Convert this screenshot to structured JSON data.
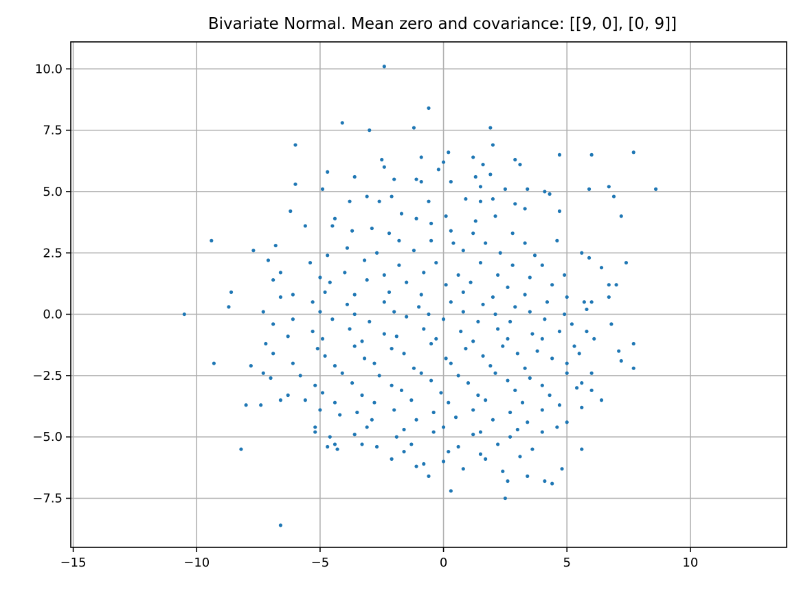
{
  "chart_data": {
    "type": "scatter",
    "title": "Bivariate Normal. Mean zero and covariance: [[9, 0], [0, 9]]",
    "xlabel": "",
    "ylabel": "",
    "xlim": [
      -15.1,
      13.9
    ],
    "ylim": [
      -9.5,
      11.1
    ],
    "xticks": [
      -15,
      -10,
      -5,
      0,
      5,
      10
    ],
    "xtick_labels": [
      "−15",
      "−10",
      "−5",
      "0",
      "5",
      "10"
    ],
    "yticks": [
      -7.5,
      -5.0,
      -2.5,
      0.0,
      2.5,
      5.0,
      7.5,
      10.0
    ],
    "ytick_labels": [
      "−7.5",
      "−5.0",
      "−2.5",
      "0.0",
      "2.5",
      "5.0",
      "7.5",
      "10.0"
    ],
    "grid": true,
    "marker_color": "#1f77b4",
    "points": [
      [
        -2.4,
        10.1
      ],
      [
        -0.6,
        8.4
      ],
      [
        -4.1,
        7.8
      ],
      [
        1.9,
        7.6
      ],
      [
        -1.2,
        7.6
      ],
      [
        -3.0,
        7.5
      ],
      [
        -6.0,
        6.9
      ],
      [
        2.0,
        6.9
      ],
      [
        7.7,
        6.6
      ],
      [
        4.7,
        6.5
      ],
      [
        6.0,
        6.5
      ],
      [
        0.2,
        6.6
      ],
      [
        1.2,
        6.4
      ],
      [
        -0.9,
        6.4
      ],
      [
        2.9,
        6.3
      ],
      [
        -2.5,
        6.3
      ],
      [
        0.0,
        6.2
      ],
      [
        1.6,
        6.1
      ],
      [
        -2.4,
        6.0
      ],
      [
        3.1,
        6.1
      ],
      [
        -0.2,
        5.9
      ],
      [
        -4.7,
        5.8
      ],
      [
        1.9,
        5.7
      ],
      [
        -3.6,
        5.6
      ],
      [
        1.3,
        5.6
      ],
      [
        -1.1,
        5.5
      ],
      [
        0.3,
        5.4
      ],
      [
        -0.9,
        5.4
      ],
      [
        -2.0,
        5.5
      ],
      [
        -6.0,
        5.3
      ],
      [
        6.7,
        5.2
      ],
      [
        8.6,
        5.1
      ],
      [
        -4.9,
        5.1
      ],
      [
        1.5,
        5.2
      ],
      [
        2.5,
        5.1
      ],
      [
        5.9,
        5.1
      ],
      [
        3.4,
        5.1
      ],
      [
        4.1,
        5.0
      ],
      [
        4.3,
        4.9
      ],
      [
        6.9,
        4.8
      ],
      [
        -3.1,
        4.8
      ],
      [
        0.9,
        4.7
      ],
      [
        -2.1,
        4.8
      ],
      [
        2.0,
        4.7
      ],
      [
        -0.6,
        4.6
      ],
      [
        -3.8,
        4.6
      ],
      [
        -2.6,
        4.6
      ],
      [
        1.5,
        4.6
      ],
      [
        2.9,
        4.5
      ],
      [
        3.3,
        4.3
      ],
      [
        -6.2,
        4.2
      ],
      [
        4.7,
        4.2
      ],
      [
        7.2,
        4.0
      ],
      [
        -1.7,
        4.1
      ],
      [
        0.1,
        4.0
      ],
      [
        2.1,
        4.0
      ],
      [
        -4.4,
        3.9
      ],
      [
        -1.1,
        3.9
      ],
      [
        1.3,
        3.8
      ],
      [
        -0.5,
        3.7
      ],
      [
        -5.6,
        3.6
      ],
      [
        -4.5,
        3.6
      ],
      [
        -3.7,
        3.4
      ],
      [
        -2.9,
        3.5
      ],
      [
        -2.2,
        3.3
      ],
      [
        0.3,
        3.4
      ],
      [
        1.2,
        3.3
      ],
      [
        2.8,
        3.3
      ],
      [
        -9.4,
        3.0
      ],
      [
        -6.8,
        2.8
      ],
      [
        -1.8,
        3.0
      ],
      [
        -0.5,
        3.0
      ],
      [
        0.4,
        2.9
      ],
      [
        1.7,
        2.9
      ],
      [
        3.3,
        2.9
      ],
      [
        4.6,
        3.0
      ],
      [
        -7.7,
        2.6
      ],
      [
        -4.7,
        2.4
      ],
      [
        -3.9,
        2.7
      ],
      [
        -2.7,
        2.5
      ],
      [
        -1.2,
        2.6
      ],
      [
        0.8,
        2.6
      ],
      [
        2.3,
        2.5
      ],
      [
        3.7,
        2.4
      ],
      [
        5.6,
        2.5
      ],
      [
        5.9,
        2.3
      ],
      [
        -7.1,
        2.2
      ],
      [
        -5.4,
        2.1
      ],
      [
        -3.2,
        2.2
      ],
      [
        -1.8,
        2.0
      ],
      [
        -0.3,
        2.1
      ],
      [
        1.5,
        2.1
      ],
      [
        2.8,
        2.0
      ],
      [
        4.0,
        2.0
      ],
      [
        7.4,
        2.1
      ],
      [
        6.4,
        1.9
      ],
      [
        -6.6,
        1.7
      ],
      [
        -5.0,
        1.5
      ],
      [
        -4.0,
        1.7
      ],
      [
        -2.4,
        1.6
      ],
      [
        -0.8,
        1.7
      ],
      [
        0.6,
        1.6
      ],
      [
        2.2,
        1.6
      ],
      [
        3.5,
        1.5
      ],
      [
        4.9,
        1.6
      ],
      [
        -6.9,
        1.4
      ],
      [
        -4.6,
        1.3
      ],
      [
        -3.1,
        1.4
      ],
      [
        -1.5,
        1.3
      ],
      [
        0.1,
        1.2
      ],
      [
        1.1,
        1.3
      ],
      [
        2.6,
        1.1
      ],
      [
        4.4,
        1.2
      ],
      [
        6.7,
        1.2
      ],
      [
        7.0,
        1.2
      ],
      [
        -8.6,
        0.9
      ],
      [
        -6.1,
        0.8
      ],
      [
        -4.8,
        0.9
      ],
      [
        -3.6,
        0.8
      ],
      [
        -2.2,
        0.9
      ],
      [
        -0.9,
        0.8
      ],
      [
        0.8,
        0.9
      ],
      [
        2.0,
        0.7
      ],
      [
        3.3,
        0.8
      ],
      [
        5.0,
        0.7
      ],
      [
        6.7,
        0.7
      ],
      [
        -6.6,
        0.7
      ],
      [
        -5.3,
        0.5
      ],
      [
        -3.9,
        0.4
      ],
      [
        -2.4,
        0.5
      ],
      [
        -1.0,
        0.3
      ],
      [
        0.3,
        0.5
      ],
      [
        1.6,
        0.4
      ],
      [
        2.9,
        0.3
      ],
      [
        4.2,
        0.5
      ],
      [
        5.7,
        0.5
      ],
      [
        6.0,
        0.5
      ],
      [
        -8.7,
        0.3
      ],
      [
        -10.5,
        0.0
      ],
      [
        -7.3,
        0.1
      ],
      [
        -5.0,
        0.1
      ],
      [
        -3.6,
        0.0
      ],
      [
        -2.0,
        0.1
      ],
      [
        -0.6,
        0.0
      ],
      [
        0.8,
        0.1
      ],
      [
        2.1,
        0.0
      ],
      [
        3.5,
        0.1
      ],
      [
        4.9,
        0.0
      ],
      [
        5.8,
        0.2
      ],
      [
        -6.1,
        -0.2
      ],
      [
        -4.5,
        -0.2
      ],
      [
        -3.0,
        -0.3
      ],
      [
        -1.5,
        -0.1
      ],
      [
        0.0,
        -0.2
      ],
      [
        1.4,
        -0.3
      ],
      [
        2.7,
        -0.3
      ],
      [
        4.1,
        -0.2
      ],
      [
        5.2,
        -0.4
      ],
      [
        6.8,
        -0.4
      ],
      [
        -6.9,
        -0.4
      ],
      [
        -5.3,
        -0.7
      ],
      [
        -3.8,
        -0.6
      ],
      [
        -2.4,
        -0.8
      ],
      [
        -0.8,
        -0.6
      ],
      [
        0.7,
        -0.7
      ],
      [
        2.2,
        -0.6
      ],
      [
        3.6,
        -0.8
      ],
      [
        4.7,
        -0.7
      ],
      [
        5.8,
        -0.7
      ],
      [
        -6.3,
        -0.9
      ],
      [
        -4.9,
        -1.0
      ],
      [
        -3.3,
        -1.1
      ],
      [
        -1.9,
        -0.9
      ],
      [
        -0.3,
        -1.0
      ],
      [
        1.2,
        -1.1
      ],
      [
        2.6,
        -1.0
      ],
      [
        4.0,
        -1.0
      ],
      [
        6.1,
        -1.0
      ],
      [
        7.7,
        -1.2
      ],
      [
        -7.2,
        -1.2
      ],
      [
        -5.1,
        -1.4
      ],
      [
        -3.6,
        -1.3
      ],
      [
        -2.1,
        -1.4
      ],
      [
        -0.5,
        -1.2
      ],
      [
        0.9,
        -1.4
      ],
      [
        2.4,
        -1.3
      ],
      [
        3.8,
        -1.5
      ],
      [
        5.3,
        -1.3
      ],
      [
        -6.9,
        -1.6
      ],
      [
        -4.8,
        -1.7
      ],
      [
        -3.2,
        -1.8
      ],
      [
        -1.6,
        -1.6
      ],
      [
        0.1,
        -1.8
      ],
      [
        1.6,
        -1.7
      ],
      [
        3.0,
        -1.6
      ],
      [
        4.4,
        -1.8
      ],
      [
        5.5,
        -1.6
      ],
      [
        7.1,
        -1.5
      ],
      [
        -9.3,
        -2.0
      ],
      [
        -6.1,
        -2.0
      ],
      [
        -4.4,
        -2.1
      ],
      [
        -2.8,
        -2.0
      ],
      [
        -1.2,
        -2.2
      ],
      [
        0.3,
        -2.0
      ],
      [
        1.9,
        -2.1
      ],
      [
        3.3,
        -2.2
      ],
      [
        5.0,
        -2.0
      ],
      [
        7.2,
        -1.9
      ],
      [
        7.7,
        -2.2
      ],
      [
        -7.8,
        -2.1
      ],
      [
        -5.8,
        -2.5
      ],
      [
        -4.1,
        -2.4
      ],
      [
        -2.6,
        -2.5
      ],
      [
        -0.9,
        -2.4
      ],
      [
        0.6,
        -2.5
      ],
      [
        2.1,
        -2.4
      ],
      [
        3.5,
        -2.6
      ],
      [
        5.0,
        -2.4
      ],
      [
        6.0,
        -2.4
      ],
      [
        -7.0,
        -2.6
      ],
      [
        -7.3,
        -2.4
      ],
      [
        -5.2,
        -2.9
      ],
      [
        -3.7,
        -2.8
      ],
      [
        -2.1,
        -2.9
      ],
      [
        -0.5,
        -2.7
      ],
      [
        1.0,
        -2.8
      ],
      [
        2.6,
        -2.7
      ],
      [
        4.0,
        -2.9
      ],
      [
        5.6,
        -2.8
      ],
      [
        6.0,
        -3.1
      ],
      [
        -4.9,
        -3.2
      ],
      [
        -3.3,
        -3.3
      ],
      [
        -1.7,
        -3.1
      ],
      [
        -0.1,
        -3.2
      ],
      [
        1.4,
        -3.3
      ],
      [
        2.9,
        -3.1
      ],
      [
        4.3,
        -3.3
      ],
      [
        5.4,
        -3.0
      ],
      [
        -6.3,
        -3.3
      ],
      [
        -5.6,
        -3.5
      ],
      [
        -4.4,
        -3.6
      ],
      [
        -2.8,
        -3.6
      ],
      [
        -1.3,
        -3.5
      ],
      [
        0.2,
        -3.6
      ],
      [
        1.7,
        -3.5
      ],
      [
        3.2,
        -3.6
      ],
      [
        4.7,
        -3.7
      ],
      [
        6.4,
        -3.5
      ],
      [
        5.6,
        -3.8
      ],
      [
        -6.6,
        -3.5
      ],
      [
        -8.0,
        -3.7
      ],
      [
        -7.4,
        -3.7
      ],
      [
        -5.0,
        -3.9
      ],
      [
        -3.5,
        -4.0
      ],
      [
        -2.0,
        -3.9
      ],
      [
        -0.4,
        -4.0
      ],
      [
        1.2,
        -3.9
      ],
      [
        2.7,
        -4.0
      ],
      [
        4.0,
        -3.9
      ],
      [
        -4.2,
        -4.1
      ],
      [
        -2.9,
        -4.3
      ],
      [
        -1.1,
        -4.3
      ],
      [
        0.5,
        -4.2
      ],
      [
        2.0,
        -4.3
      ],
      [
        3.4,
        -4.4
      ],
      [
        -5.2,
        -4.6
      ],
      [
        -3.1,
        -4.6
      ],
      [
        -1.6,
        -4.7
      ],
      [
        0.0,
        -4.6
      ],
      [
        1.5,
        -4.8
      ],
      [
        3.0,
        -4.7
      ],
      [
        4.6,
        -4.6
      ],
      [
        5.0,
        -4.4
      ],
      [
        -5.2,
        -4.8
      ],
      [
        -3.6,
        -4.9
      ],
      [
        -1.9,
        -5.0
      ],
      [
        -0.4,
        -4.8
      ],
      [
        1.2,
        -4.9
      ],
      [
        2.7,
        -5.0
      ],
      [
        4.0,
        -4.8
      ],
      [
        -4.6,
        -5.0
      ],
      [
        -4.4,
        -5.3
      ],
      [
        -3.3,
        -5.3
      ],
      [
        -1.3,
        -5.3
      ],
      [
        0.6,
        -5.4
      ],
      [
        2.2,
        -5.3
      ],
      [
        3.6,
        -5.5
      ],
      [
        5.6,
        -5.5
      ],
      [
        -8.2,
        -5.5
      ],
      [
        -4.7,
        -5.4
      ],
      [
        -4.3,
        -5.5
      ],
      [
        -2.7,
        -5.4
      ],
      [
        -1.6,
        -5.6
      ],
      [
        0.2,
        -5.6
      ],
      [
        1.5,
        -5.7
      ],
      [
        -2.1,
        -5.9
      ],
      [
        -0.8,
        -6.1
      ],
      [
        1.7,
        -5.9
      ],
      [
        3.1,
        -5.8
      ],
      [
        -1.1,
        -6.2
      ],
      [
        0.8,
        -6.3
      ],
      [
        2.4,
        -6.4
      ],
      [
        4.8,
        -6.3
      ],
      [
        -0.6,
        -6.6
      ],
      [
        0.0,
        -6.0
      ],
      [
        3.4,
        -6.6
      ],
      [
        2.6,
        -6.8
      ],
      [
        4.1,
        -6.8
      ],
      [
        4.4,
        -6.9
      ],
      [
        0.3,
        -7.2
      ],
      [
        2.5,
        -7.5
      ],
      [
        -6.6,
        -8.6
      ]
    ]
  }
}
